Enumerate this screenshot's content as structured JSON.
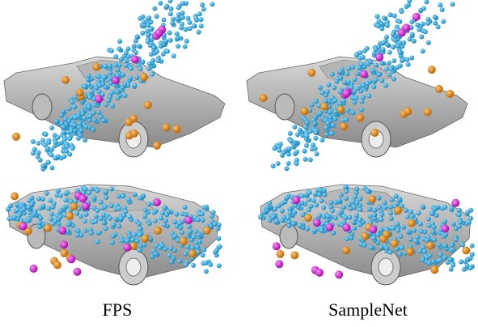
{
  "labels": [
    "FPS",
    "SampleNet"
  ]
}
